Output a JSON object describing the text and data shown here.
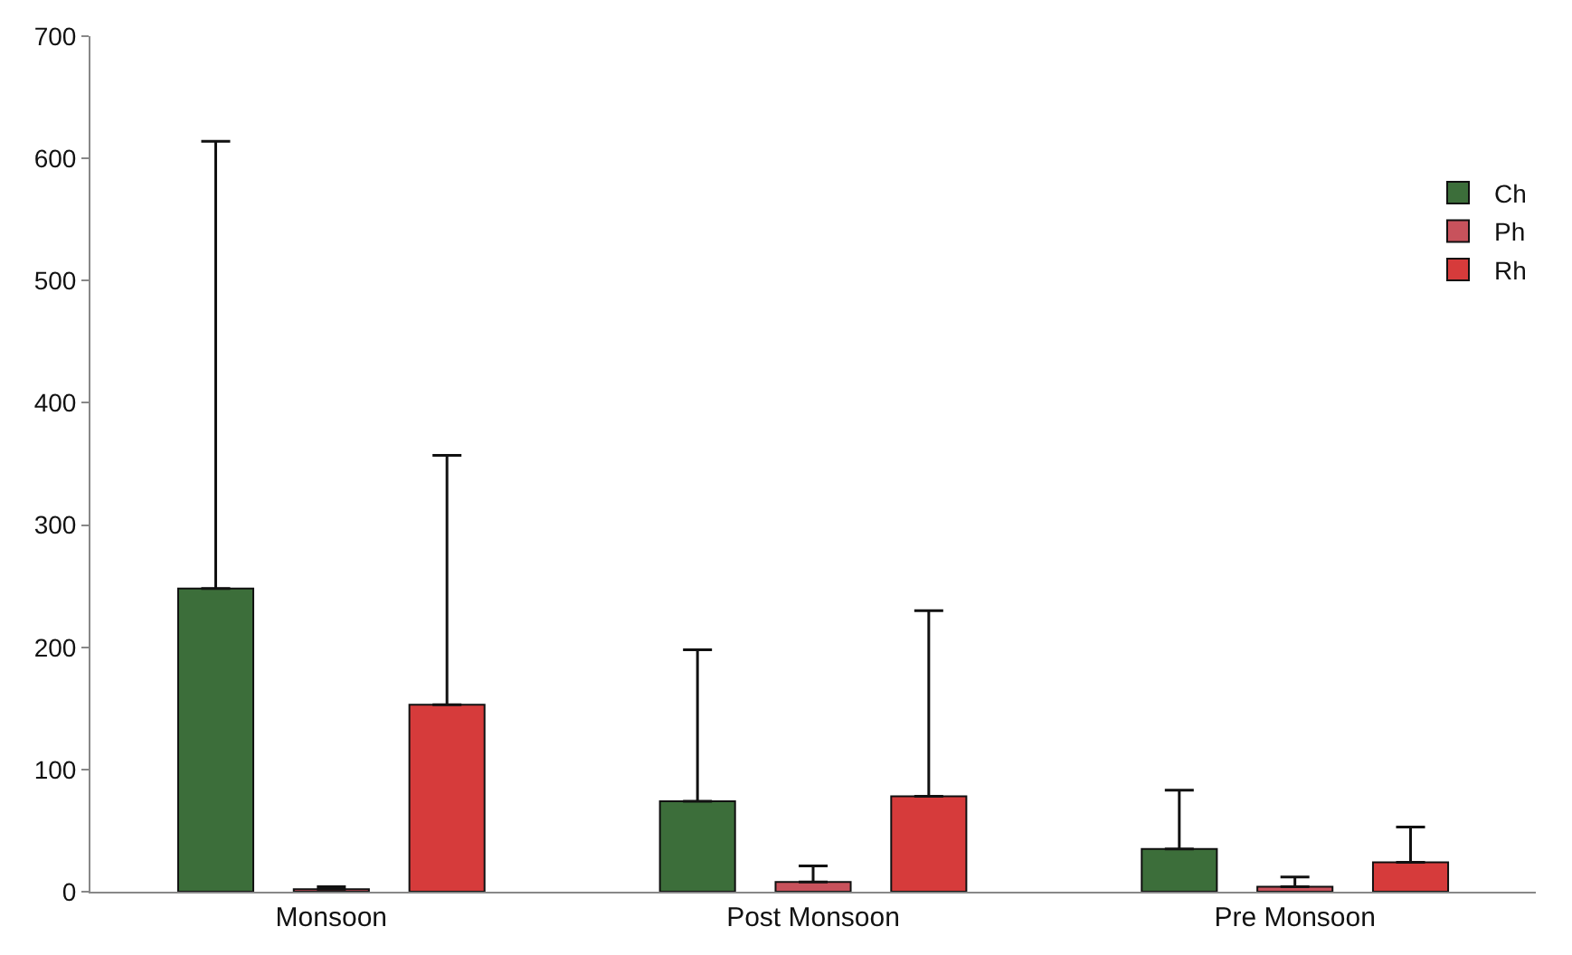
{
  "chart_data": {
    "type": "bar",
    "categories": [
      "Monsoon",
      "Post Monsoon",
      "Pre Monsoon"
    ],
    "series": [
      {
        "name": "Ch",
        "color": "#3c6e3a",
        "values": [
          248,
          74,
          35
        ],
        "errors": [
          [
            248,
            614
          ],
          [
            74,
            198
          ],
          [
            35,
            83
          ]
        ]
      },
      {
        "name": "Ph",
        "color": "#c8525c",
        "values": [
          2,
          8,
          4
        ],
        "errors": [
          [
            2,
            4
          ],
          [
            8,
            21
          ],
          [
            4,
            12
          ]
        ]
      },
      {
        "name": "Rh",
        "color": "#d63b3b",
        "values": [
          153,
          78,
          24
        ],
        "errors": [
          [
            153,
            357
          ],
          [
            78,
            230
          ],
          [
            24,
            53
          ]
        ]
      }
    ],
    "ylim": [
      0,
      700
    ],
    "yticks": [
      0,
      100,
      200,
      300,
      400,
      500,
      600,
      700
    ],
    "legend": "top right"
  }
}
